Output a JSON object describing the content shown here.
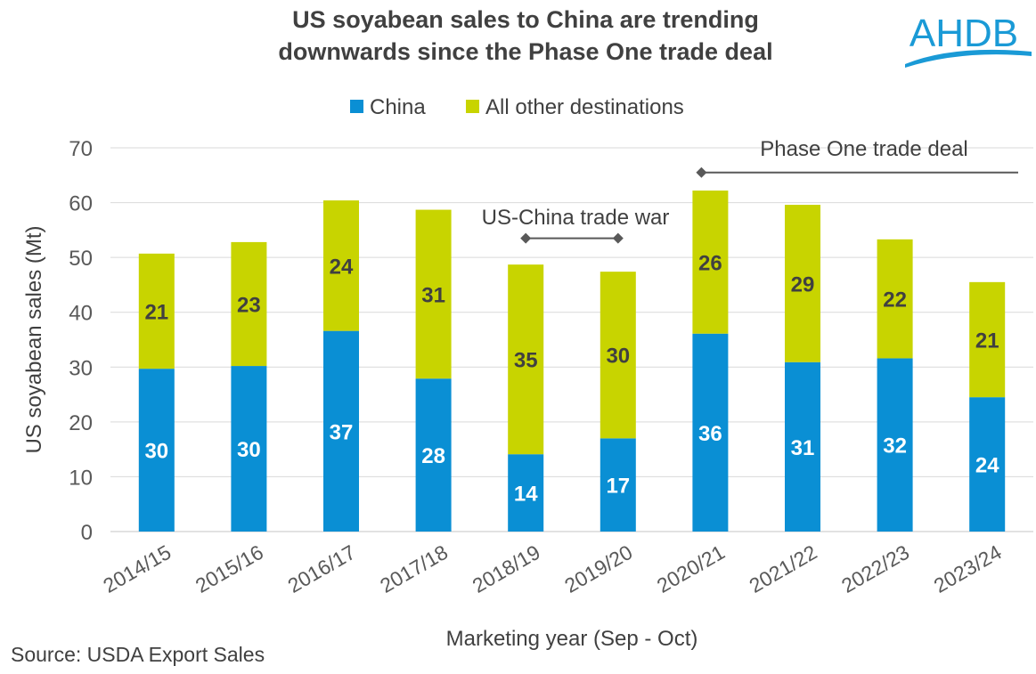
{
  "chart_data": {
    "type": "bar",
    "stacked": true,
    "title": [
      "US soyabean sales to China are trending",
      "downwards since the Phase One trade deal"
    ],
    "xlabel": "Marketing year (Sep - Oct)",
    "ylabel": "US soyabean sales (Mt)",
    "ylim": [
      0,
      70
    ],
    "yticks": [
      0,
      10,
      20,
      30,
      40,
      50,
      60,
      70
    ],
    "grid": true,
    "legend_position": "top",
    "categories": [
      "2014/15",
      "2015/16",
      "2016/17",
      "2017/18",
      "2018/19",
      "2019/20",
      "2020/21",
      "2021/22",
      "2022/23",
      "2023/24"
    ],
    "series": [
      {
        "name": "China",
        "color": "#0a8fd4",
        "label_color": "#ffffff",
        "values": [
          29.7,
          30.2,
          36.6,
          27.9,
          14.1,
          17.0,
          36.1,
          30.9,
          31.6,
          24.5
        ],
        "labels": [
          "30",
          "30",
          "37",
          "28",
          "14",
          "17",
          "36",
          "31",
          "32",
          "24"
        ]
      },
      {
        "name": "All other destinations",
        "color": "#c8d400",
        "label_color": "#404040",
        "values": [
          21.0,
          22.6,
          23.8,
          30.8,
          34.6,
          30.4,
          26.1,
          28.7,
          21.7,
          21.0
        ],
        "labels": [
          "21",
          "23",
          "24",
          "31",
          "35",
          "30",
          "26",
          "29",
          "22",
          "21"
        ]
      }
    ],
    "annotations": [
      {
        "text": "US-China trade war",
        "from": "2018/19",
        "to": "2019/20",
        "y": 53.5
      },
      {
        "text": "Phase One trade deal",
        "from": "2020/21",
        "to": "end",
        "y": 65.5
      }
    ]
  },
  "logo": {
    "text": "AHDB",
    "color": "#1a9ad6"
  },
  "source": "Source: USDA Export Sales"
}
